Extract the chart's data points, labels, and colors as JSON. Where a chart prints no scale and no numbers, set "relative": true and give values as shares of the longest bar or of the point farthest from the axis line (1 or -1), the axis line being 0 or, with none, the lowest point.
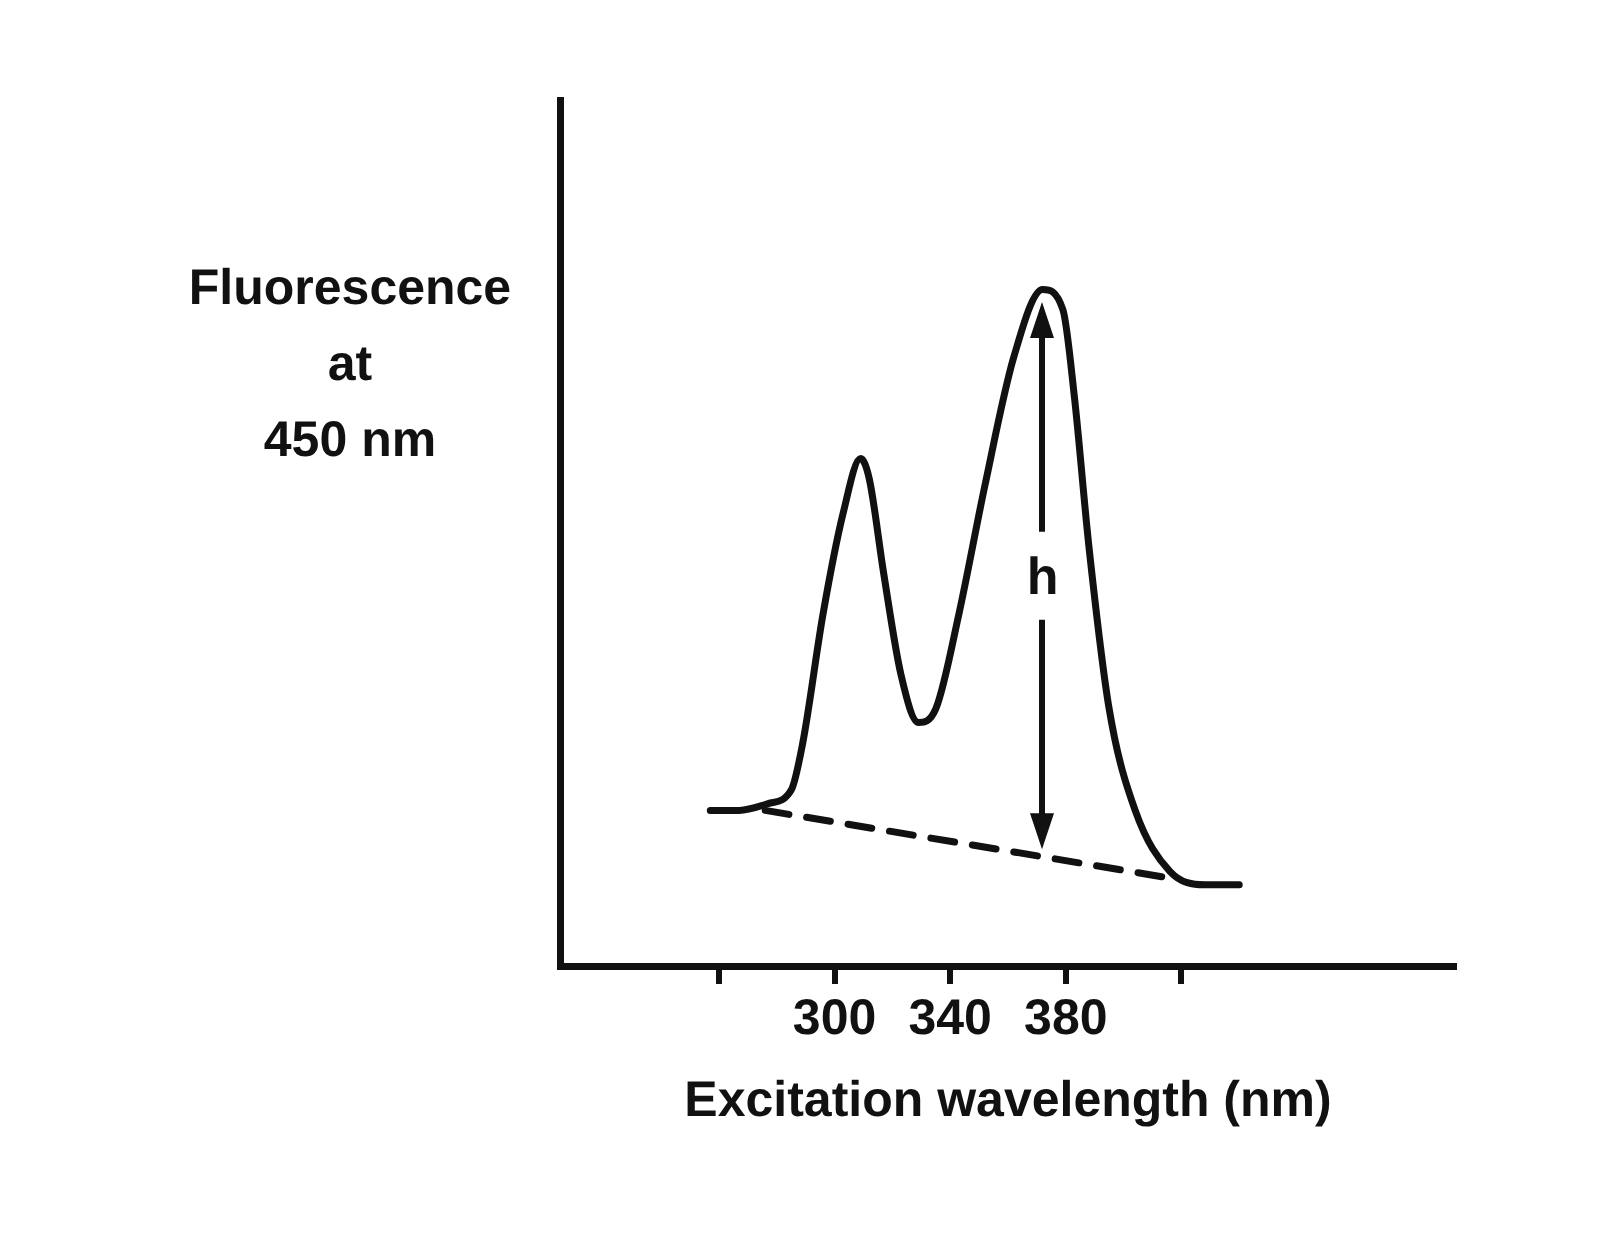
{
  "chart_data": {
    "type": "line",
    "relative": true,
    "xlabel": "Excitation wavelength (nm)",
    "ylabel": "Fluorescence\nat\n450 nm",
    "xlim": [
      205,
      515
    ],
    "xticks": [
      {
        "value": 260,
        "label": null
      },
      300,
      340,
      380,
      {
        "value": 420,
        "label": null
      }
    ],
    "grid": false,
    "legend": false,
    "marker": "none",
    "series": [
      {
        "color": "#111111",
        "line_style": "solid",
        "x": [
          257,
          267,
          277,
          285,
          289,
          296,
          303,
          309,
          312,
          317,
          323,
          329,
          335,
          343,
          352,
          362,
          372,
          379,
          383,
          388,
          395,
          404,
          416,
          428,
          440
        ],
        "values": [
          0.23,
          0.23,
          0.24,
          0.26,
          0.33,
          0.52,
          0.67,
          0.75,
          0.72,
          0.58,
          0.43,
          0.36,
          0.38,
          0.52,
          0.71,
          0.9,
          1.0,
          0.97,
          0.84,
          0.62,
          0.38,
          0.23,
          0.14,
          0.12,
          0.12
        ]
      },
      {
        "color": "#111111",
        "line_style": "dashed",
        "x": [
          276,
          416
        ],
        "values": [
          0.23,
          0.13
        ]
      }
    ],
    "annotations": [
      "h"
    ]
  }
}
